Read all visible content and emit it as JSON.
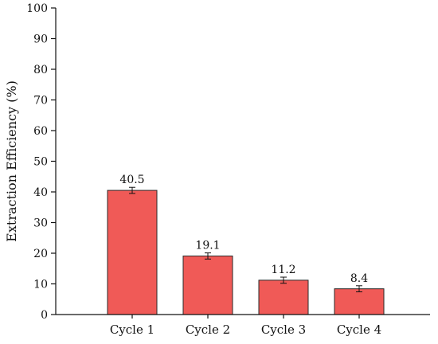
{
  "chart_data": {
    "type": "bar",
    "title": "",
    "xlabel": "",
    "ylabel": "Extraction Efficiency (%)",
    "ylim": [
      0,
      100
    ],
    "yticks": [
      0,
      10,
      20,
      30,
      40,
      50,
      60,
      70,
      80,
      90,
      100
    ],
    "categories": [
      "Cycle 1",
      "Cycle 2",
      "Cycle 3",
      "Cycle 4"
    ],
    "values": [
      40.5,
      19.1,
      11.2,
      8.4
    ],
    "value_labels": [
      "40.5",
      "19.1",
      "11.2",
      "8.4"
    ],
    "error": [
      1.0,
      1.0,
      1.0,
      1.0
    ],
    "bar_color": "#f05a57",
    "bar_edge_color": "#2a2a2a",
    "grid": false,
    "legend": "none"
  }
}
